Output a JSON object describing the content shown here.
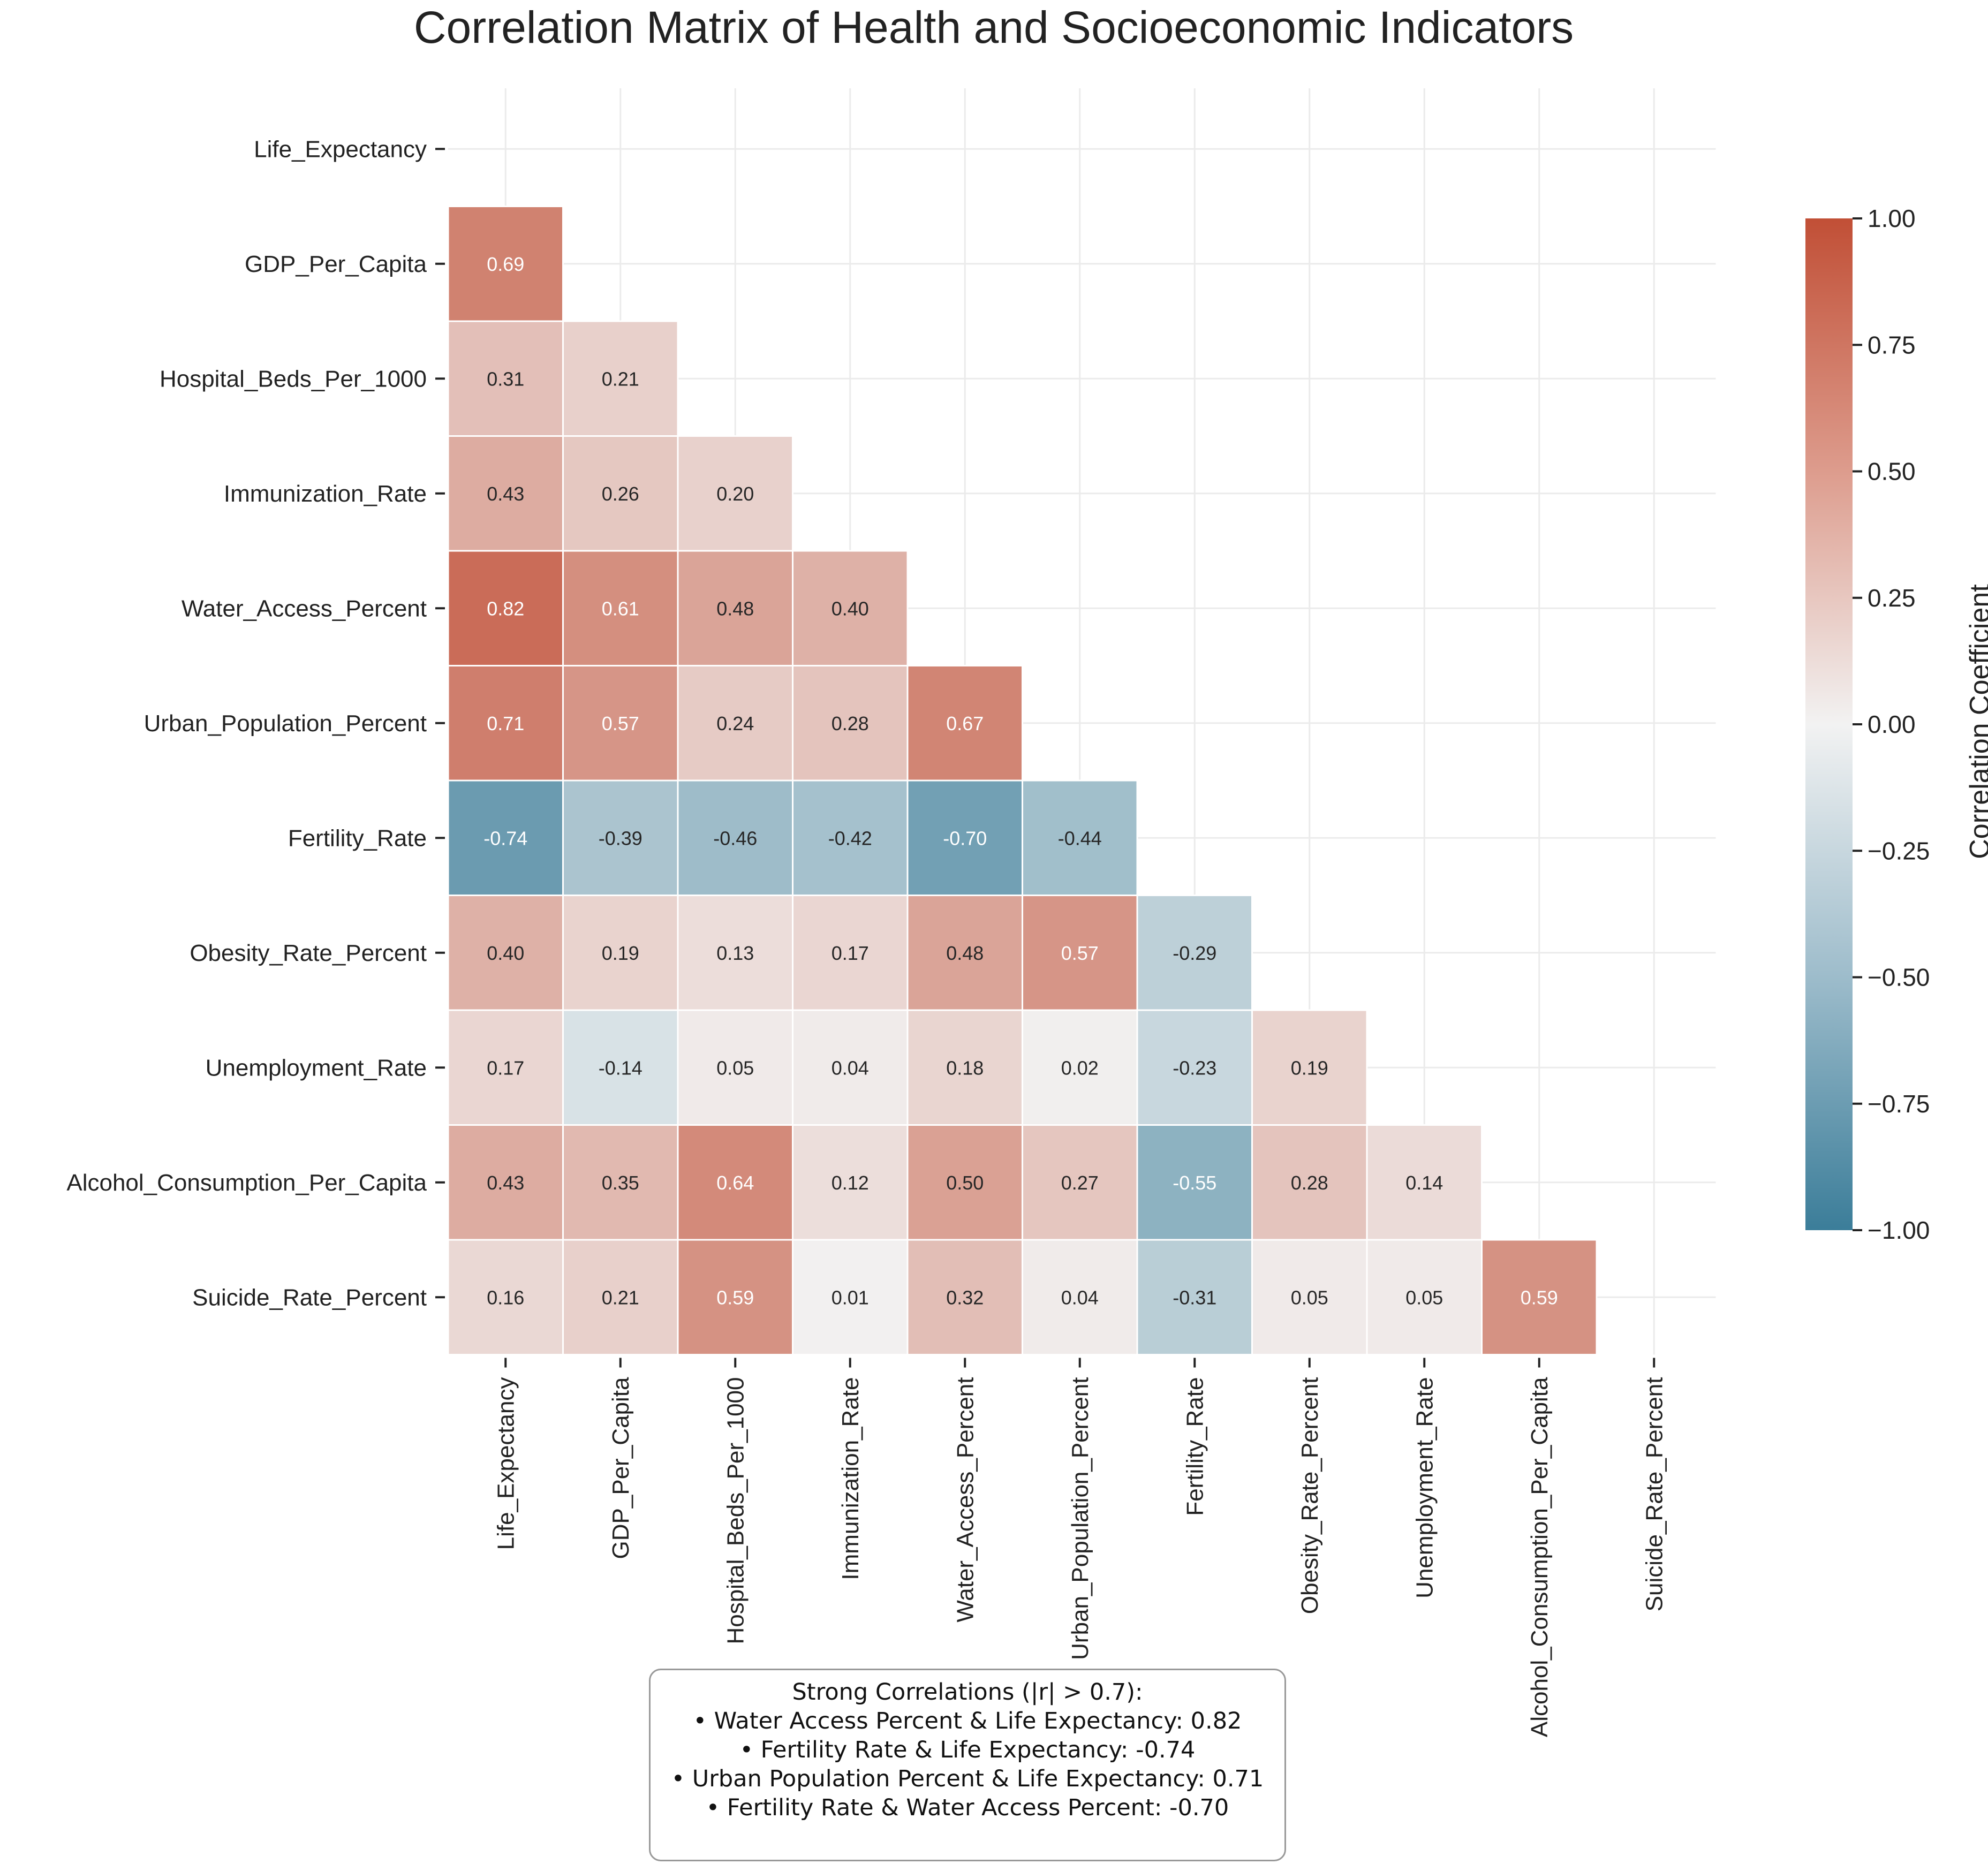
{
  "chart_data": {
    "type": "heatmap",
    "title": "Correlation Matrix of Health and Socioeconomic Indicators",
    "variables": [
      "Life_Expectancy",
      "GDP_Per_Capita",
      "Hospital_Beds_Per_1000",
      "Immunization_Rate",
      "Water_Access_Percent",
      "Urban_Population_Percent",
      "Fertility_Rate",
      "Obesity_Rate_Percent",
      "Unemployment_Rate",
      "Alcohol_Consumption_Per_Capita",
      "Suicide_Rate_Percent"
    ],
    "mask": "upper-triangle-including-diagonal",
    "values": [
      [],
      [
        0.69
      ],
      [
        0.31,
        0.21
      ],
      [
        0.43,
        0.26,
        0.2
      ],
      [
        0.82,
        0.61,
        0.48,
        0.4
      ],
      [
        0.71,
        0.57,
        0.24,
        0.28,
        0.67
      ],
      [
        -0.74,
        -0.39,
        -0.46,
        -0.42,
        -0.7,
        -0.44
      ],
      [
        0.4,
        0.19,
        0.13,
        0.17,
        0.48,
        0.57,
        -0.29
      ],
      [
        0.17,
        -0.14,
        0.05,
        0.04,
        0.18,
        0.02,
        -0.23,
        0.19
      ],
      [
        0.43,
        0.35,
        0.64,
        0.12,
        0.5,
        0.27,
        -0.55,
        0.28,
        0.14
      ],
      [
        0.16,
        0.21,
        0.59,
        0.01,
        0.32,
        0.04,
        -0.31,
        0.05,
        0.05,
        0.59
      ]
    ],
    "colorbar": {
      "label": "Correlation Coefficient",
      "range": [
        -1,
        1
      ],
      "ticks": [
        "1.00",
        "0.75",
        "0.50",
        "0.25",
        "0.00",
        "−0.25",
        "−0.50",
        "−0.75",
        "−1.00"
      ],
      "colors": {
        "negative": "#3b7d99",
        "neutral": "#f2f2f2",
        "positive": "#c14f36"
      }
    },
    "grid": true,
    "annotation": {
      "title": "Strong Correlations (|r| > 0.7):",
      "lines": [
        "• Water Access Percent & Life Expectancy: 0.82",
        "• Fertility Rate & Life Expectancy: -0.74",
        "• Urban Population Percent & Life Expectancy: 0.71",
        "• Fertility Rate & Water Access Percent: -0.70"
      ]
    }
  }
}
